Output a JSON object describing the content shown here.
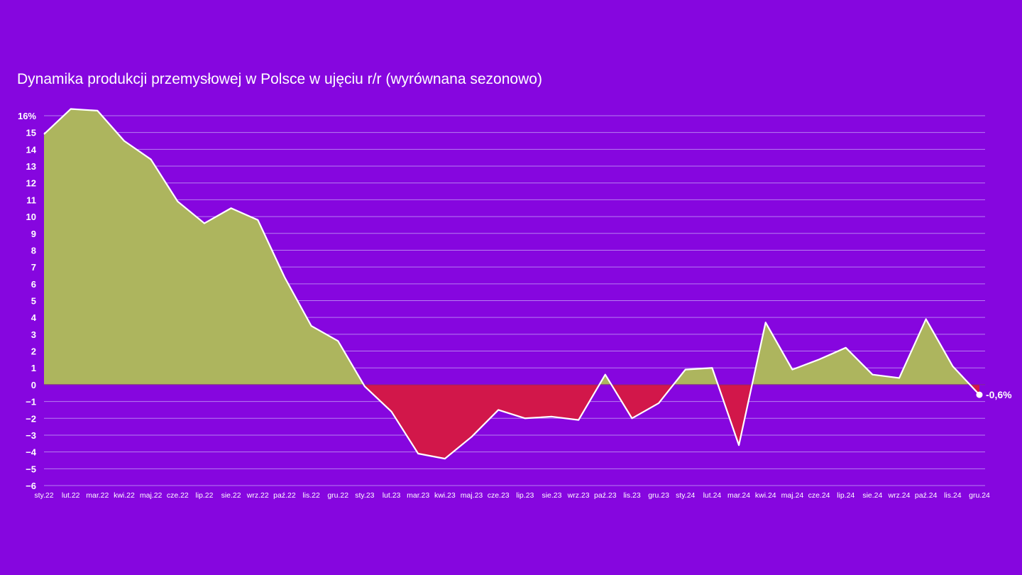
{
  "colors": {
    "background": "#8606df",
    "positive_fill": "#adb55e",
    "negative_fill": "#d2174a",
    "line": "#ffffff",
    "grid": "#b77df0"
  },
  "chart_data": {
    "type": "area",
    "title": "Dynamika produkcji przemysłowej w Polsce w ujęciu r/r (wyrównana sezonowo)",
    "xlabel": "",
    "ylabel": "",
    "ylim": [
      -6,
      16
    ],
    "grid": true,
    "y_ticks": [
      "16%",
      "15",
      "14",
      "13",
      "12",
      "11",
      "10",
      "9",
      "8",
      "7",
      "6",
      "5",
      "4",
      "3",
      "2",
      "1",
      "0",
      "−1",
      "−2",
      "−3",
      "−4",
      "−5",
      "−6"
    ],
    "categories": [
      "sty.22",
      "lut.22",
      "mar.22",
      "kwi.22",
      "maj.22",
      "cze.22",
      "lip.22",
      "sie.22",
      "wrz.22",
      "paź.22",
      "lis.22",
      "gru.22",
      "sty.23",
      "lut.23",
      "mar.23",
      "kwi.23",
      "maj.23",
      "cze.23",
      "lip.23",
      "sie.23",
      "wrz.23",
      "paź.23",
      "lis.23",
      "gru.23",
      "sty.24",
      "lut.24",
      "mar.24",
      "kwi.24",
      "maj.24",
      "cze.24",
      "lip.24",
      "sie.24",
      "wrz.24",
      "paź.24",
      "lis.24",
      "gru.24"
    ],
    "values": [
      14.9,
      16.4,
      16.3,
      14.5,
      13.4,
      10.9,
      9.6,
      10.5,
      9.8,
      6.4,
      3.5,
      2.6,
      -0.1,
      -1.6,
      -4.1,
      -4.4,
      -3.1,
      -1.5,
      -2.0,
      -1.9,
      -2.1,
      0.6,
      -2.0,
      -1.1,
      0.9,
      1.0,
      -3.6,
      3.7,
      0.9,
      1.5,
      2.2,
      0.6,
      0.4,
      3.9,
      1.1,
      -0.6
    ],
    "end_label": "-0,6%"
  }
}
